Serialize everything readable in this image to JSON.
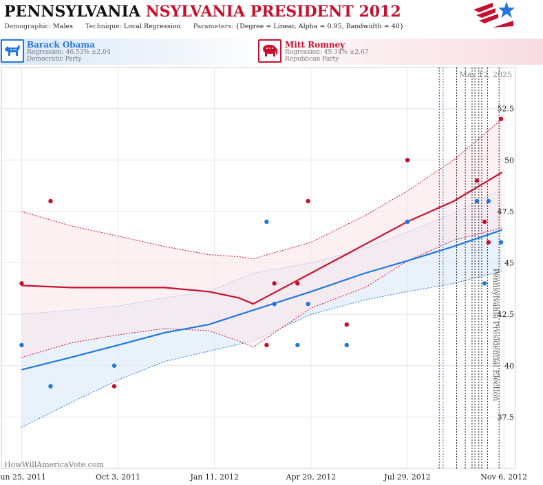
{
  "header": {
    "title_part1": "PENNSYLVANIA",
    "title_part2": "NSYLVANIA PRESIDENT 2012",
    "demographic_key": "Demographic:",
    "demographic_val": "Males",
    "technique_key": "Technique:",
    "technique_val": "Local Regression",
    "parameters_key": "Parameters:",
    "parameters_val": "{Degree = Linear, Alpha = 0.95, Bandwidth = 40}"
  },
  "candidates": {
    "dem": {
      "name": "Barack Obama",
      "regression": "Regression: 46.53% ±2.04",
      "party": "Democratic Party",
      "color": "#2277dd"
    },
    "rep": {
      "name": "Mitt Romney",
      "regression": "Regression: 49.34% ±2.67",
      "party": "Republican Party",
      "color": "#c8102e"
    }
  },
  "watermark": "HowWillAmericaVote.com",
  "icons": {
    "logo": "american-flag-star-logo",
    "dem": "donkey-icon",
    "rep": "elephant-icon"
  },
  "chart_data": {
    "type": "scatter",
    "date_label": "May 12, 2025",
    "event_label": "Pennsylvania Presidential Election",
    "x_ticks": [
      {
        "label": "Jun 25, 2011",
        "date": "2011-06-25"
      },
      {
        "label": "Oct 3, 2011",
        "date": "2011-10-03"
      },
      {
        "label": "Jan 11, 2012",
        "date": "2012-01-11"
      },
      {
        "label": "Apr 20, 2012",
        "date": "2012-04-20"
      },
      {
        "label": "Jul 29, 2012",
        "date": "2012-07-29"
      },
      {
        "label": "Nov 6, 2012",
        "date": "2012-11-06"
      }
    ],
    "y_ticks": [
      "37.5",
      "40",
      "42.5",
      "45",
      "47.5",
      "50",
      "52.5"
    ],
    "xlim": [
      "2011-06-04",
      "2012-11-18"
    ],
    "ylim": [
      35.0,
      54.5
    ],
    "grid": true,
    "vlines": [
      {
        "date": "2012-08-31",
        "color": "#c8102e"
      },
      {
        "date": "2012-09-04",
        "color": "#2277dd"
      },
      {
        "date": "2012-09-18",
        "color": "#222222"
      },
      {
        "date": "2012-09-27",
        "color": "#222222"
      },
      {
        "date": "2012-10-04",
        "color": "#222222"
      },
      {
        "date": "2012-10-07",
        "color": "#222222"
      },
      {
        "date": "2012-10-11",
        "color": "#222222"
      },
      {
        "date": "2012-10-14",
        "color": "#222222"
      },
      {
        "date": "2012-10-20",
        "color": "#222222"
      },
      {
        "date": "2012-11-01",
        "color": "#222222"
      }
    ],
    "series": [
      {
        "name": "Barack Obama",
        "color": "#2277dd",
        "band_color": "#dde9f7",
        "points": [
          {
            "x": "2011-06-25",
            "y": 41
          },
          {
            "x": "2011-07-25",
            "y": 39
          },
          {
            "x": "2011-09-29",
            "y": 40
          },
          {
            "x": "2012-03-05",
            "y": 47
          },
          {
            "x": "2012-03-13",
            "y": 43
          },
          {
            "x": "2012-04-06",
            "y": 41
          },
          {
            "x": "2012-04-17",
            "y": 43
          },
          {
            "x": "2012-05-27",
            "y": 41
          },
          {
            "x": "2012-07-29",
            "y": 47
          },
          {
            "x": "2012-10-09",
            "y": 48
          },
          {
            "x": "2012-10-17",
            "y": 44
          },
          {
            "x": "2012-10-21",
            "y": 48
          },
          {
            "x": "2012-11-03",
            "y": 46
          }
        ],
        "fit": {
          "x": [
            "2011-06-25",
            "2011-08-15",
            "2011-10-03",
            "2011-11-20",
            "2012-01-05",
            "2012-02-20",
            "2012-04-20",
            "2012-06-15",
            "2012-07-29",
            "2012-09-15",
            "2012-11-04"
          ],
          "y": [
            39.8,
            40.4,
            41.0,
            41.6,
            42.0,
            42.7,
            43.6,
            44.5,
            45.1,
            45.8,
            46.6
          ],
          "lower": [
            37.0,
            38.2,
            39.3,
            40.2,
            40.7,
            41.2,
            42.5,
            43.2,
            43.6,
            44.0,
            44.6
          ],
          "upper": [
            42.5,
            42.7,
            42.9,
            43.3,
            43.6,
            44.5,
            45.0,
            45.7,
            46.5,
            47.4,
            48.6
          ]
        }
      },
      {
        "name": "Mitt Romney",
        "color": "#c8102e",
        "band_color": "#fbe8ec",
        "points": [
          {
            "x": "2011-06-25",
            "y": 44
          },
          {
            "x": "2011-07-25",
            "y": 48
          },
          {
            "x": "2011-09-29",
            "y": 39
          },
          {
            "x": "2012-03-05",
            "y": 41
          },
          {
            "x": "2012-03-13",
            "y": 44
          },
          {
            "x": "2012-04-06",
            "y": 44
          },
          {
            "x": "2012-04-17",
            "y": 48
          },
          {
            "x": "2012-05-27",
            "y": 42
          },
          {
            "x": "2012-07-29",
            "y": 50
          },
          {
            "x": "2012-10-09",
            "y": 49
          },
          {
            "x": "2012-10-17",
            "y": 47
          },
          {
            "x": "2012-10-21",
            "y": 46
          },
          {
            "x": "2012-11-03",
            "y": 52
          }
        ],
        "fit": {
          "x": [
            "2011-06-25",
            "2011-08-15",
            "2011-10-03",
            "2011-11-20",
            "2012-01-05",
            "2012-02-05",
            "2012-02-20",
            "2012-04-20",
            "2012-06-15",
            "2012-07-29",
            "2012-09-15",
            "2012-11-04"
          ],
          "y": [
            43.9,
            43.8,
            43.8,
            43.8,
            43.6,
            43.3,
            43.0,
            44.5,
            45.9,
            47.0,
            48.0,
            49.4
          ],
          "lower": [
            40.4,
            41.1,
            41.5,
            41.8,
            41.7,
            41.2,
            40.9,
            42.8,
            43.8,
            45.1,
            46.1,
            46.7
          ],
          "upper": [
            47.5,
            46.8,
            46.3,
            45.8,
            45.4,
            45.3,
            45.2,
            46.0,
            47.3,
            48.5,
            50.0,
            52.0
          ]
        }
      }
    ]
  }
}
